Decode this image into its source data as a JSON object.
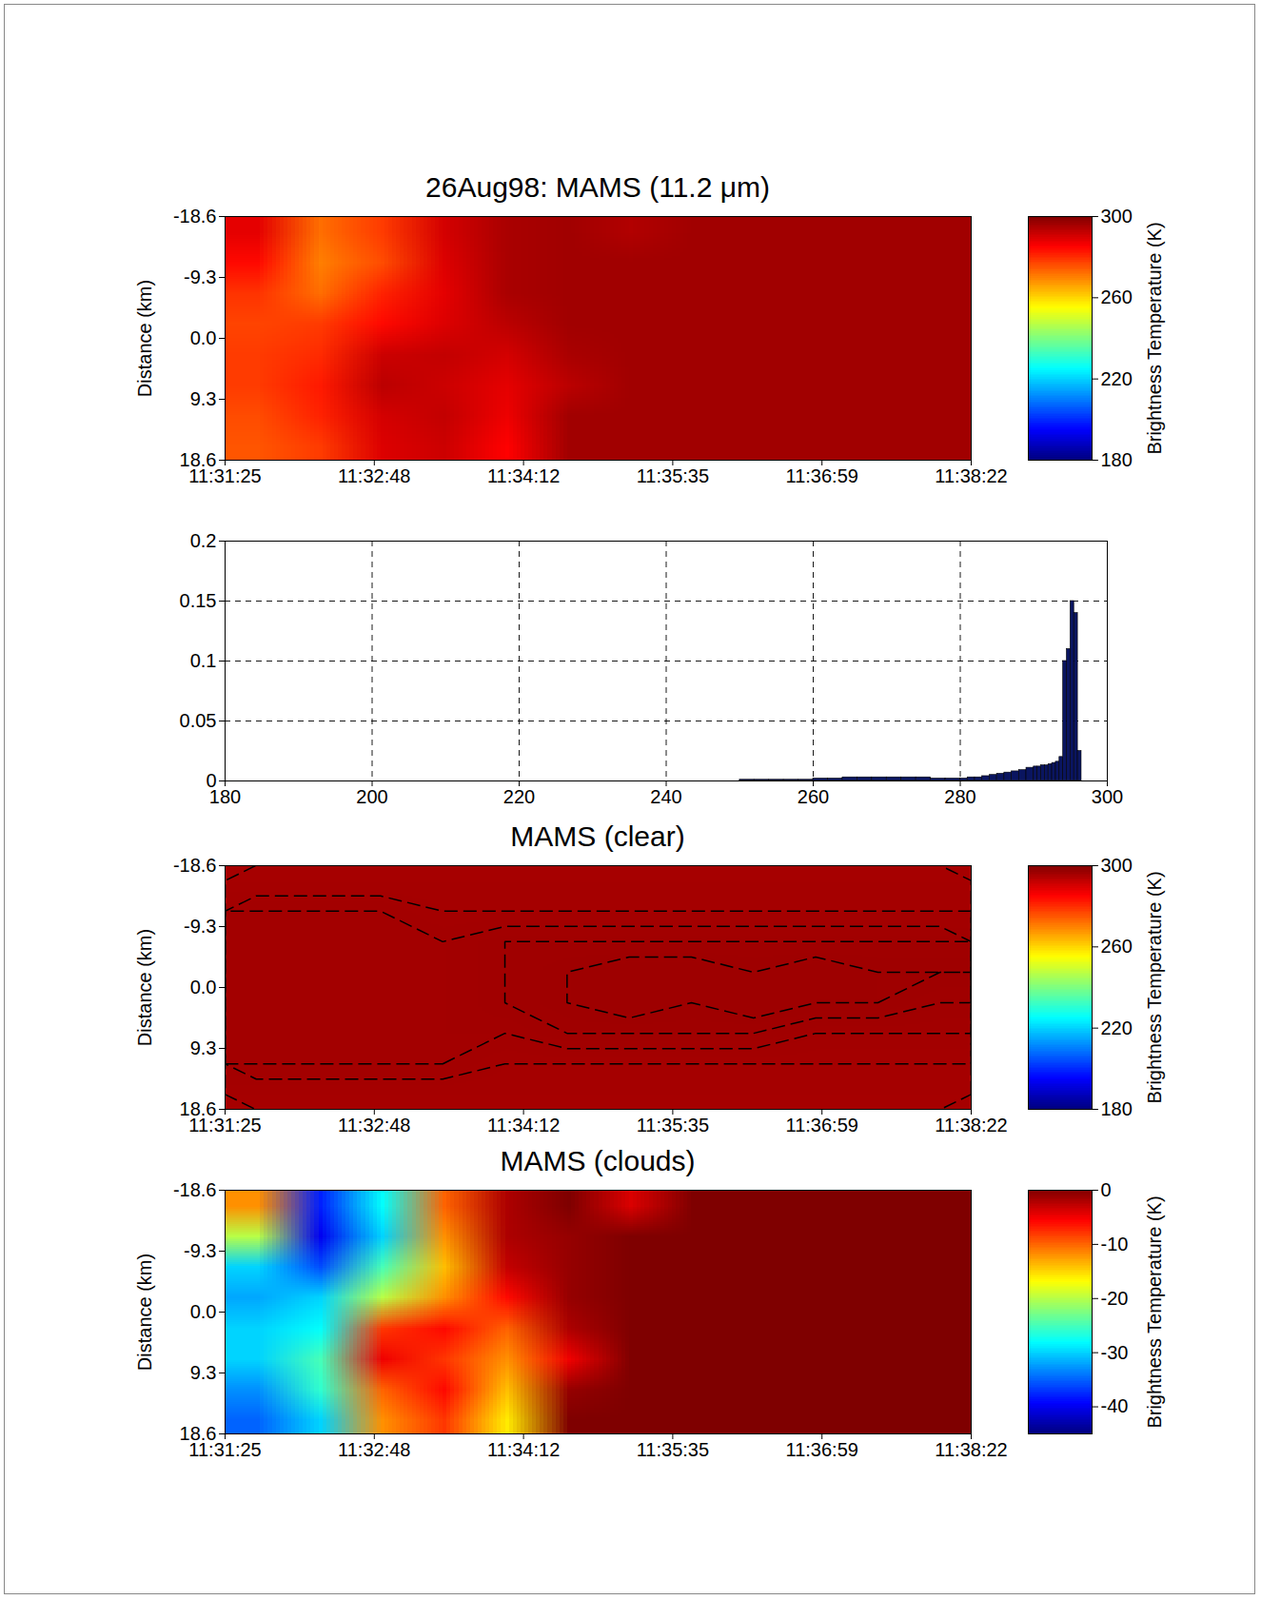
{
  "chart_data": [
    {
      "type": "heatmap",
      "title": "26Aug98:  MAMS (11.2 μm)",
      "ylabel": "Distance (km)",
      "x": [
        41502.4,
        41537.1,
        41571.9,
        41606.6,
        41641.4,
        41676.1,
        41710.9,
        41745.6,
        41780.4,
        41815.1,
        41849.9,
        41884.6
      ],
      "y": [
        -16.3,
        -11.6,
        -7.0,
        -2.3,
        2.3,
        7.0,
        11.6,
        16.3
      ],
      "z": [
        [
          288,
          272,
          278,
          290,
          295,
          296,
          294,
          296,
          296,
          296,
          296,
          296
        ],
        [
          284,
          270,
          276,
          289,
          295,
          296,
          296,
          296,
          296,
          296,
          296,
          296
        ],
        [
          279,
          272,
          281,
          288,
          295,
          296,
          296,
          296,
          296,
          296,
          296,
          296
        ],
        [
          277,
          278,
          284,
          289,
          293,
          296,
          296,
          296,
          296,
          296,
          296,
          296
        ],
        [
          278,
          280,
          291,
          292,
          290,
          295,
          296,
          296,
          296,
          296,
          296,
          296
        ],
        [
          278,
          282,
          293,
          291,
          288,
          293,
          296,
          296,
          296,
          296,
          296,
          296
        ],
        [
          276,
          281,
          290,
          292,
          287,
          296,
          296,
          296,
          296,
          296,
          296,
          296
        ],
        [
          275,
          278,
          289,
          291,
          285,
          296,
          296,
          296,
          296,
          296,
          296,
          296
        ]
      ],
      "xlim": [
        41485,
        41902
      ],
      "xticks": [
        {
          "value": 41485,
          "label": "11:31:25"
        },
        {
          "value": 41568.4,
          "label": "11:32:48"
        },
        {
          "value": 41651.8,
          "label": "11:34:12"
        },
        {
          "value": 41735.2,
          "label": "11:35:35"
        },
        {
          "value": 41818.6,
          "label": "11:36:59"
        },
        {
          "value": 41902,
          "label": "11:38:22"
        }
      ],
      "ylim": [
        -18.6,
        18.6
      ],
      "yticks": [
        -18.6,
        -9.3,
        {
          "value": 0,
          "label": "0.0"
        },
        9.3,
        18.6
      ],
      "colorbar_label": "Brightness Temperature (K)",
      "colorbar_range": [
        180,
        300
      ],
      "colorbar_ticks": [
        180,
        220,
        260,
        300
      ]
    },
    {
      "type": "histogram",
      "color": "#0a1560",
      "bins": [
        250,
        252,
        254,
        256,
        258,
        260,
        262,
        264,
        266,
        268,
        270,
        272,
        274,
        276,
        278,
        280,
        281,
        282,
        283,
        284,
        285,
        286,
        287,
        288,
        289,
        290,
        290.5,
        291,
        291.5,
        292,
        292.5,
        293,
        293.5,
        294,
        294.5,
        295,
        295.5,
        296,
        296.5
      ],
      "values": [
        0.001,
        0.001,
        0.001,
        0.001,
        0.001,
        0.002,
        0.002,
        0.003,
        0.003,
        0.003,
        0.003,
        0.003,
        0.003,
        0.002,
        0.002,
        0.002,
        0.003,
        0.003,
        0.004,
        0.005,
        0.006,
        0.007,
        0.008,
        0.009,
        0.011,
        0.012,
        0.012,
        0.013,
        0.013,
        0.014,
        0.015,
        0.016,
        0.02,
        0.1,
        0.11,
        0.15,
        0.14,
        0.025
      ],
      "xlim": [
        180,
        300
      ],
      "xticks": [
        180,
        200,
        220,
        240,
        260,
        280,
        300
      ],
      "ylim": [
        0,
        0.2
      ],
      "yticks": [
        0,
        0.05,
        0.1,
        0.15,
        0.2
      ],
      "grid": true
    },
    {
      "type": "contour",
      "title": "MAMS (clear)",
      "ylabel": "Distance (km)",
      "x": [
        41502.4,
        41537.1,
        41571.9,
        41606.6,
        41641.4,
        41676.1,
        41710.9,
        41745.6,
        41780.4,
        41815.1,
        41849.9,
        41884.6
      ],
      "y": [
        -16.3,
        -11.6,
        -7.0,
        -2.3,
        2.3,
        7.0,
        11.6,
        16.3
      ],
      "z": [
        [
          295.4,
          295.4,
          295.4,
          295.4,
          295.4,
          295.4,
          295.4,
          295.4,
          295.4,
          295.4,
          295.4,
          295.4
        ],
        [
          295.8,
          295.8,
          295.8,
          295.6,
          295.6,
          295.6,
          295.6,
          295.6,
          295.6,
          295.6,
          295.6,
          295.6
        ],
        [
          295.8,
          295.8,
          295.8,
          295.8,
          296.0,
          296.0,
          296.0,
          296.0,
          296.0,
          296.0,
          296.0,
          296.0
        ],
        [
          295.8,
          295.8,
          295.8,
          295.8,
          296.0,
          296.2,
          296.4,
          296.4,
          296.2,
          296.4,
          296.2,
          296.2
        ],
        [
          295.8,
          295.8,
          295.8,
          295.8,
          296.0,
          296.2,
          296.4,
          296.2,
          296.4,
          296.2,
          296.2,
          296.0
        ],
        [
          295.8,
          295.8,
          295.8,
          295.8,
          295.8,
          296.0,
          296.0,
          296.0,
          296.0,
          295.8,
          295.8,
          295.8
        ],
        [
          295.8,
          295.8,
          295.8,
          295.8,
          295.6,
          295.6,
          295.6,
          295.6,
          295.6,
          295.6,
          295.6,
          295.6
        ],
        [
          295.4,
          295.4,
          295.4,
          295.4,
          295.4,
          295.4,
          295.4,
          295.4,
          295.4,
          295.4,
          295.4,
          295.4
        ]
      ],
      "xlim": [
        41485,
        41902
      ],
      "xticks": [
        {
          "value": 41485,
          "label": "11:31:25"
        },
        {
          "value": 41568.4,
          "label": "11:32:48"
        },
        {
          "value": 41651.8,
          "label": "11:34:12"
        },
        {
          "value": 41735.2,
          "label": "11:35:35"
        },
        {
          "value": 41818.6,
          "label": "11:36:59"
        },
        {
          "value": 41902,
          "label": "11:38:22"
        }
      ],
      "ylim": [
        -18.6,
        18.6
      ],
      "yticks": [
        -18.6,
        -9.3,
        {
          "value": 0,
          "label": "0.0"
        },
        9.3,
        18.6
      ],
      "colorbar_label": "Brightness Temperature (K)",
      "colorbar_range": [
        180,
        300
      ],
      "colorbar_ticks": [
        180,
        220,
        260,
        300
      ]
    },
    {
      "type": "heatmap",
      "title": "MAMS (clouds)",
      "ylabel": "Distance (km)",
      "x": [
        41502.4,
        41537.1,
        41571.9,
        41606.6,
        41641.4,
        41676.1,
        41710.9,
        41745.6,
        41780.4,
        41815.1,
        41849.9,
        41884.6
      ],
      "y": [
        -16.3,
        -11.6,
        -7.0,
        -2.3,
        2.3,
        7.0,
        11.6,
        16.3
      ],
      "z": [
        [
          -12,
          -38,
          -28,
          -10,
          -2,
          0,
          -4,
          0,
          0,
          0,
          0,
          0
        ],
        [
          -20,
          -40,
          -30,
          -12,
          -2,
          -1,
          0,
          0,
          0,
          0,
          0,
          0
        ],
        [
          -30,
          -36,
          -25,
          -14,
          -3,
          -1,
          0,
          0,
          0,
          0,
          0,
          0
        ],
        [
          -32,
          -30,
          -20,
          -12,
          -6,
          -1,
          0,
          0,
          0,
          0,
          0,
          0
        ],
        [
          -30,
          -28,
          -8,
          -6,
          -10,
          -2,
          0,
          0,
          0,
          0,
          0,
          0
        ],
        [
          -30,
          -25,
          -5,
          -8,
          -12,
          -5,
          0,
          0,
          0,
          0,
          0,
          0
        ],
        [
          -33,
          -26,
          -10,
          -6,
          -14,
          -1,
          0,
          0,
          0,
          0,
          0,
          0
        ],
        [
          -35,
          -30,
          -12,
          -8,
          -16,
          0,
          0,
          0,
          0,
          0,
          0,
          0
        ]
      ],
      "xlim": [
        41485,
        41902
      ],
      "xticks": [
        {
          "value": 41485,
          "label": "11:31:25"
        },
        {
          "value": 41568.4,
          "label": "11:32:48"
        },
        {
          "value": 41651.8,
          "label": "11:34:12"
        },
        {
          "value": 41735.2,
          "label": "11:35:35"
        },
        {
          "value": 41818.6,
          "label": "11:36:59"
        },
        {
          "value": 41902,
          "label": "11:38:22"
        }
      ],
      "ylim": [
        -18.6,
        18.6
      ],
      "yticks": [
        -18.6,
        -9.3,
        {
          "value": 0,
          "label": "0.0"
        },
        9.3,
        18.6
      ],
      "colorbar_label": "Brightness Temperature (K)",
      "colorbar_range": [
        -45,
        0
      ],
      "colorbar_ticks": [
        0,
        -10,
        -20,
        -30,
        -40
      ]
    }
  ]
}
